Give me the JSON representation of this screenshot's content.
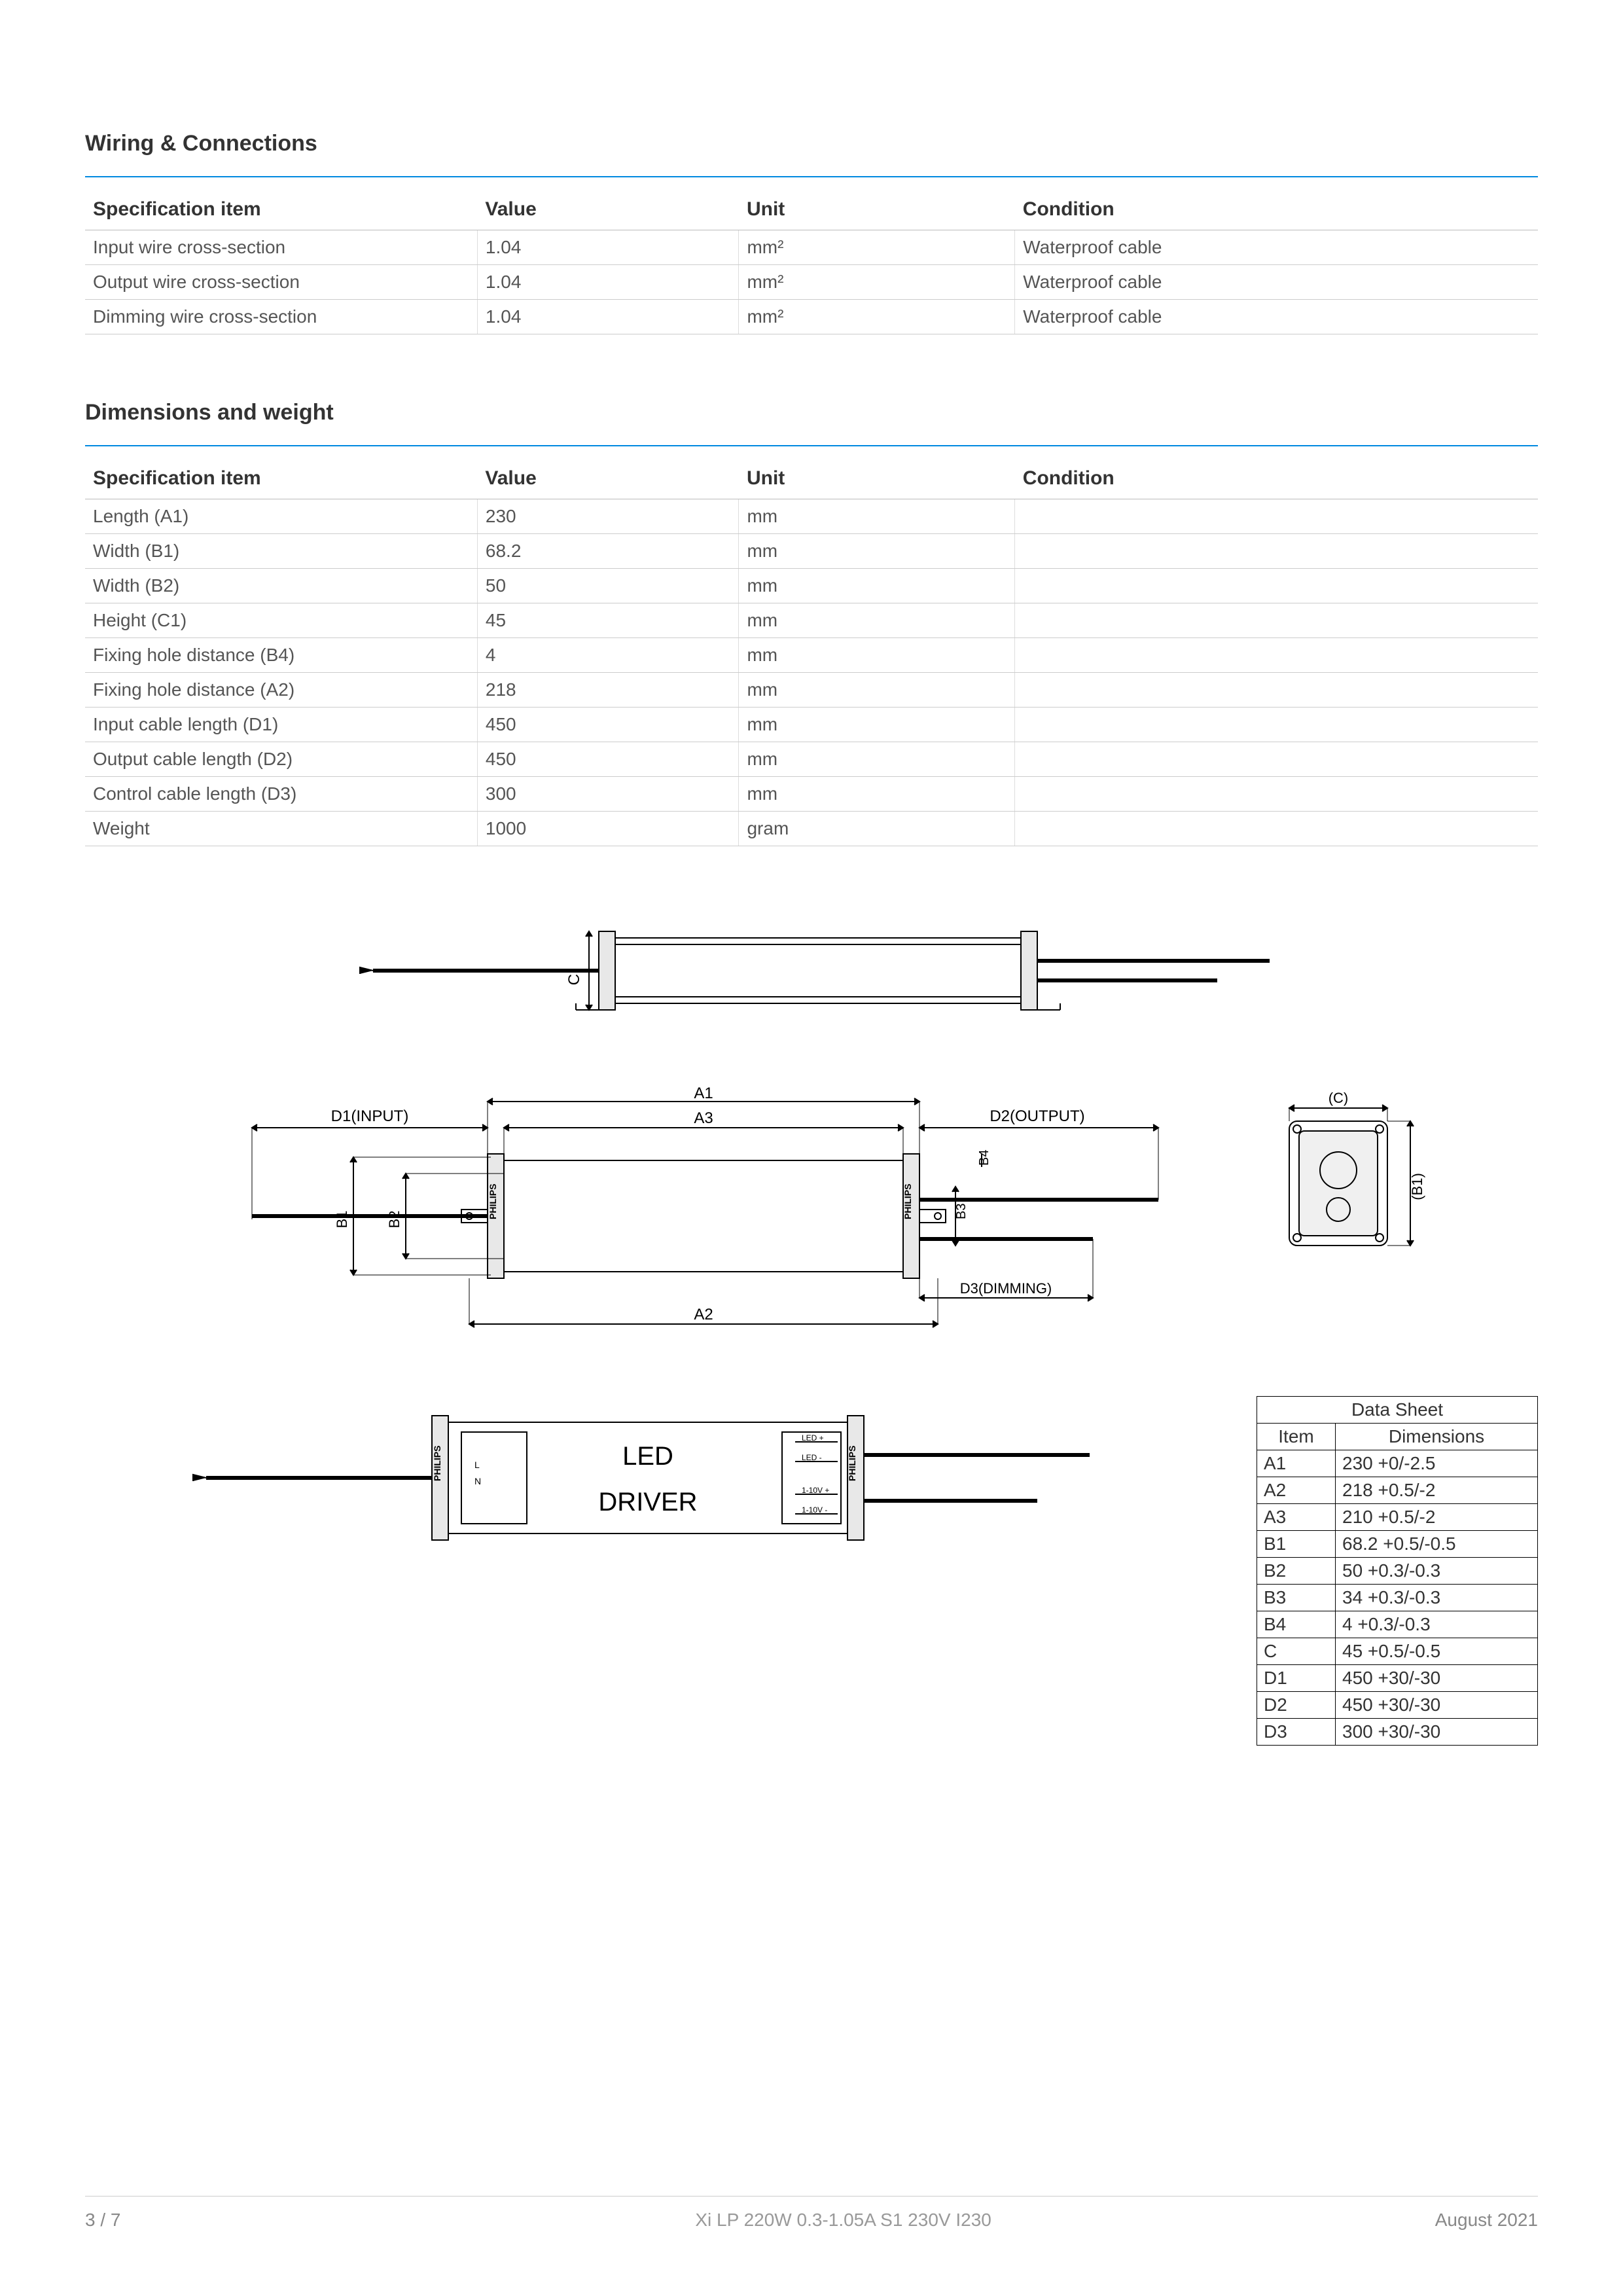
{
  "sections": {
    "wiring_title": "Wiring & Connections",
    "dims_title": "Dimensions and weight"
  },
  "wiring_table": {
    "headers": [
      "Specification item",
      "Value",
      "Unit",
      "Condition"
    ],
    "rows": [
      [
        "Input wire cross-section",
        "1.04",
        "mm²",
        "Waterproof cable"
      ],
      [
        "Output wire cross-section",
        "1.04",
        "mm²",
        "Waterproof cable"
      ],
      [
        "Dimming wire cross-section",
        "1.04",
        "mm²",
        "Waterproof cable"
      ]
    ]
  },
  "dims_table": {
    "headers": [
      "Specification item",
      "Value",
      "Unit",
      "Condition"
    ],
    "rows": [
      [
        "Length (A1)",
        "230",
        "mm",
        ""
      ],
      [
        "Width (B1)",
        "68.2",
        "mm",
        ""
      ],
      [
        "Width (B2)",
        "50",
        "mm",
        ""
      ],
      [
        "Height (C1)",
        "45",
        "mm",
        ""
      ],
      [
        "Fixing hole distance (B4)",
        "4",
        "mm",
        ""
      ],
      [
        "Fixing hole distance (A2)",
        "218",
        "mm",
        ""
      ],
      [
        "Input cable length (D1)",
        "450",
        "mm",
        ""
      ],
      [
        "Output cable length (D2)",
        "450",
        "mm",
        ""
      ],
      [
        "Control cable length (D3)",
        "300",
        "mm",
        ""
      ],
      [
        "Weight",
        "1000",
        "gram",
        ""
      ]
    ]
  },
  "diagram_labels": {
    "c": "C",
    "a1": "A1",
    "a2": "A2",
    "a3": "A3",
    "b1": "B1",
    "b2": "B2",
    "b3": "B3",
    "b4": "B4",
    "d1": "D1(INPUT)",
    "d2": "D2(OUTPUT)",
    "d3": "D3(DIMMING)",
    "c_paren": "(C)",
    "b1_paren": "(B1)",
    "led": "LED",
    "driver": "DRIVER",
    "philips": "PHILIPS",
    "out_ledp": "LED +",
    "out_ledm": "LED -",
    "out_10vp": "1-10V +",
    "out_10vm": "1-10V -",
    "in_l": "L",
    "in_n": "N"
  },
  "datasheet": {
    "title": "Data Sheet",
    "headers": [
      "Item",
      "Dimensions"
    ],
    "rows": [
      [
        "A1",
        "230  +0/-2.5"
      ],
      [
        "A2",
        "218  +0.5/-2"
      ],
      [
        "A3",
        "210 +0.5/-2"
      ],
      [
        "B1",
        "68.2 +0.5/-0.5"
      ],
      [
        "B2",
        "50 +0.3/-0.3"
      ],
      [
        "B3",
        "34 +0.3/-0.3"
      ],
      [
        "B4",
        "4 +0.3/-0.3"
      ],
      [
        "C",
        "45 +0.5/-0.5"
      ],
      [
        "D1",
        "450 +30/-30"
      ],
      [
        "D2",
        "450 +30/-30"
      ],
      [
        "D3",
        "300 +30/-30"
      ]
    ]
  },
  "footer": {
    "page": "3 / 7",
    "product": "Xi LP 220W 0.3-1.05A S1 230V I230",
    "date": "August 2021"
  },
  "colors": {
    "rule": "#0089e0",
    "text": "#333333",
    "muted": "#888888",
    "border": "#cccccc",
    "diagram_stroke": "#000000",
    "diagram_fill": "#ffffff",
    "diagram_light": "#e8e8e8"
  }
}
